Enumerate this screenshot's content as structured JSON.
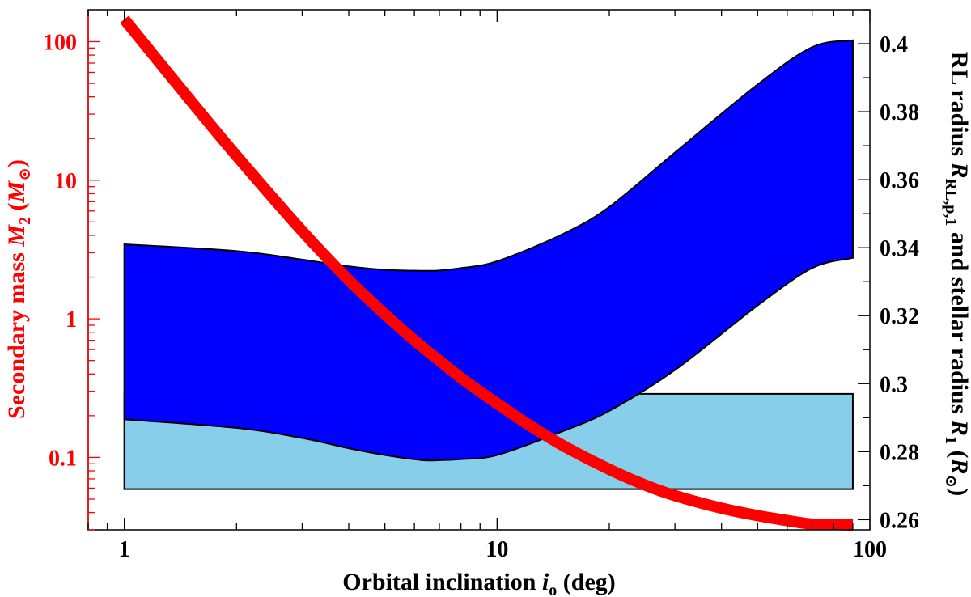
{
  "chart_data": {
    "type": "area",
    "xlabel": {
      "main": "Orbital inclination ",
      "var": "i",
      "sub": "o",
      "tail": " (deg)"
    },
    "ylabel_left": {
      "main": "Secondary mass ",
      "var": "M",
      "sub": "2",
      "tail_open": " (",
      "var2": "M",
      "sub2": "⊙",
      "tail_close": ")"
    },
    "ylabel_right": {
      "main": "RL radius ",
      "var": "R",
      "sub": "RL,p,1",
      "mid": " and stellar radius ",
      "var2": "R",
      "sub2": "1",
      "tail_open": " (",
      "var3": "R",
      "sub3": "⊙",
      "tail_close": ")"
    },
    "x_scale": "log",
    "xlim": [
      0.8,
      100
    ],
    "x_ticks": [
      {
        "value": 1,
        "label": "1"
      },
      {
        "value": 10,
        "label": "10"
      },
      {
        "value": 100,
        "label": "100"
      }
    ],
    "y_left_scale": "log",
    "y_left_lim": [
      0.03,
      170
    ],
    "y_left_ticks": [
      {
        "value": 0.1,
        "label": "0.1"
      },
      {
        "value": 1,
        "label": "1"
      },
      {
        "value": 10,
        "label": "10"
      },
      {
        "value": 100,
        "label": "100"
      }
    ],
    "y_right_lim": [
      0.257,
      0.41
    ],
    "y_right_ticks": [
      {
        "value": 0.26,
        "label": "0.26"
      },
      {
        "value": 0.28,
        "label": "0.28"
      },
      {
        "value": 0.3,
        "label": "0.3"
      },
      {
        "value": 0.32,
        "label": "0.32"
      },
      {
        "value": 0.34,
        "label": "0.34"
      },
      {
        "value": 0.36,
        "label": "0.36"
      },
      {
        "value": 0.38,
        "label": "0.38"
      },
      {
        "value": 0.4,
        "label": "0.4"
      }
    ],
    "grid": false,
    "colors": {
      "mass_curve": "#ff0000",
      "rl_band": "#0000ff",
      "stellar_band": "#87ceeb",
      "axis_left": "#ff0000",
      "axis_other": "#000000"
    },
    "series": [
      {
        "key": "rl_band",
        "axis": "right",
        "kind": "band",
        "x": [
          1,
          2,
          3,
          4,
          5,
          6.3,
          7,
          8,
          10,
          15,
          20,
          30,
          50,
          70,
          90
        ],
        "upper": [
          0.341,
          0.339,
          0.3365,
          0.3345,
          0.3335,
          0.3332,
          0.3333,
          0.334,
          0.336,
          0.344,
          0.352,
          0.368,
          0.388,
          0.399,
          0.401
        ],
        "lower": [
          0.2895,
          0.287,
          0.284,
          0.281,
          0.279,
          0.2775,
          0.2775,
          0.2778,
          0.279,
          0.286,
          0.292,
          0.304,
          0.323,
          0.334,
          0.337
        ]
      },
      {
        "key": "stellar_band",
        "axis": "right",
        "kind": "band",
        "x": [
          1,
          90
        ],
        "upper": [
          0.297,
          0.297
        ],
        "lower": [
          0.269,
          0.269
        ]
      },
      {
        "key": "mass_curve",
        "axis": "left",
        "kind": "line",
        "x": [
          1,
          1.5,
          2,
          3,
          4,
          5,
          6,
          7,
          8,
          10,
          12,
          15,
          20,
          25,
          30,
          40,
          50,
          60,
          70,
          80,
          90
        ],
        "y": [
          145,
          38,
          15,
          4.3,
          1.9,
          1.08,
          0.7,
          0.5,
          0.375,
          0.245,
          0.176,
          0.122,
          0.082,
          0.063,
          0.053,
          0.043,
          0.038,
          0.035,
          0.033,
          0.0328,
          0.0325
        ]
      }
    ]
  }
}
